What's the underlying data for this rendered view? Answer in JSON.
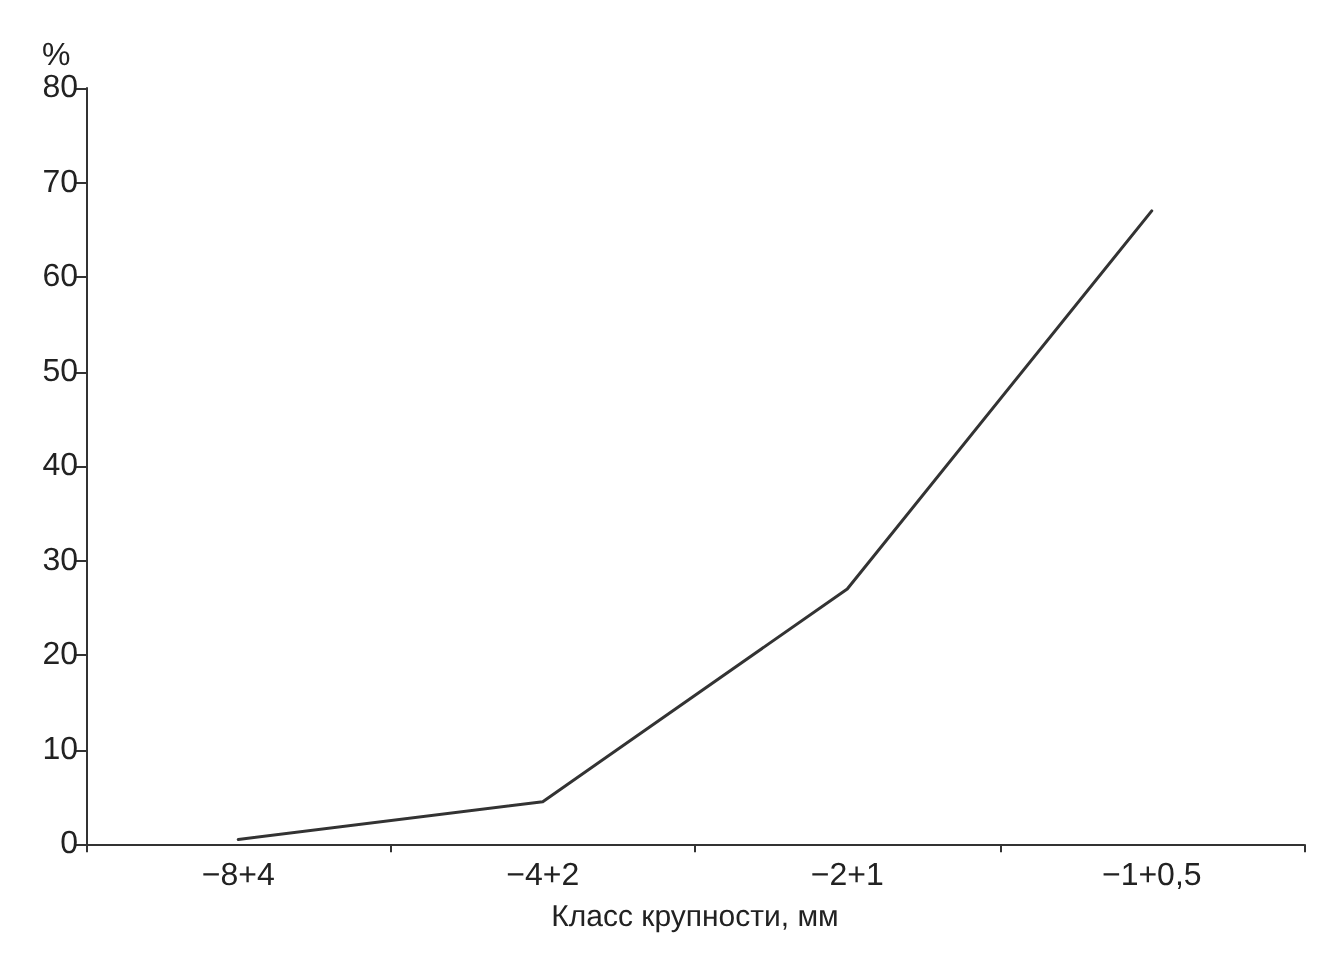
{
  "chart_data": {
    "type": "line",
    "xlabel": "Класс крупности, мм",
    "ylabel": "%",
    "categories": [
      "−8+4",
      "−4+2",
      "−2+1",
      "−1+0,5"
    ],
    "series": [
      {
        "color": "#333333",
        "values": [
          0.5,
          4.5,
          27,
          67
        ]
      }
    ],
    "ylim": [
      0,
      80
    ],
    "yticks": [
      0,
      10,
      20,
      30,
      40,
      50,
      60,
      70,
      80
    ],
    "grid": false,
    "marker": "none",
    "line_style": "solid"
  }
}
